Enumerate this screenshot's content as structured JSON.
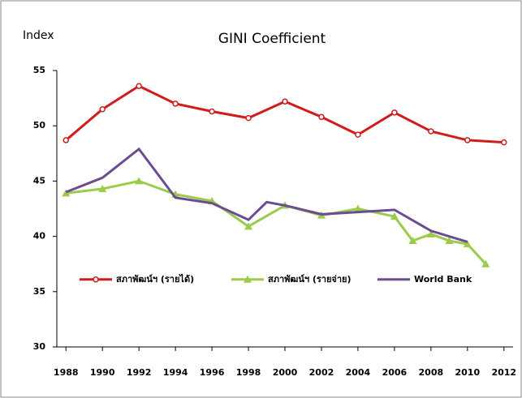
{
  "chart_data": {
    "type": "line",
    "title": "GINI Coefficient",
    "y_label": "Index",
    "xlim": [
      1987.5,
      2012.5
    ],
    "xticks": [
      1988,
      1990,
      1992,
      1994,
      1996,
      1998,
      2000,
      2002,
      2004,
      2006,
      2008,
      2010,
      2012
    ],
    "ylim": [
      30,
      55
    ],
    "yticks": [
      30,
      35,
      40,
      45,
      50,
      55
    ],
    "grid": false,
    "legend": "inside-bottom",
    "series": [
      {
        "name": "สภาพัฒน์ฯ (รายได้)",
        "color": "#d01c1c",
        "marker": "circle",
        "x": [
          1988,
          1990,
          1992,
          1994,
          1996,
          1998,
          2000,
          2002,
          2004,
          2006,
          2008,
          2010,
          2012
        ],
        "values": [
          48.7,
          51.5,
          53.6,
          52.0,
          51.3,
          50.7,
          52.2,
          50.8,
          49.2,
          51.2,
          49.5,
          48.7,
          48.5
        ]
      },
      {
        "name": "สภาพัฒน์ฯ (รายจ่าย)",
        "color": "#9acb4a",
        "marker": "triangle",
        "x": [
          1988,
          1990,
          1992,
          1994,
          1996,
          1998,
          2000,
          2002,
          2004,
          2006,
          2007,
          2008,
          2009,
          2010,
          2011
        ],
        "values": [
          43.9,
          44.3,
          45.0,
          43.8,
          43.2,
          40.9,
          42.8,
          41.9,
          42.5,
          41.8,
          39.6,
          40.2,
          39.6,
          39.3,
          37.5
        ]
      },
      {
        "name": "World Bank",
        "color": "#6a4c93",
        "marker": null,
        "x": [
          1988,
          1990,
          1992,
          1994,
          1996,
          1998,
          1999,
          2000,
          2002,
          2004,
          2006,
          2008,
          2010
        ],
        "values": [
          44.0,
          45.3,
          47.9,
          43.5,
          43.0,
          41.5,
          43.1,
          42.8,
          42.0,
          42.2,
          42.4,
          40.5,
          39.5
        ]
      }
    ]
  }
}
